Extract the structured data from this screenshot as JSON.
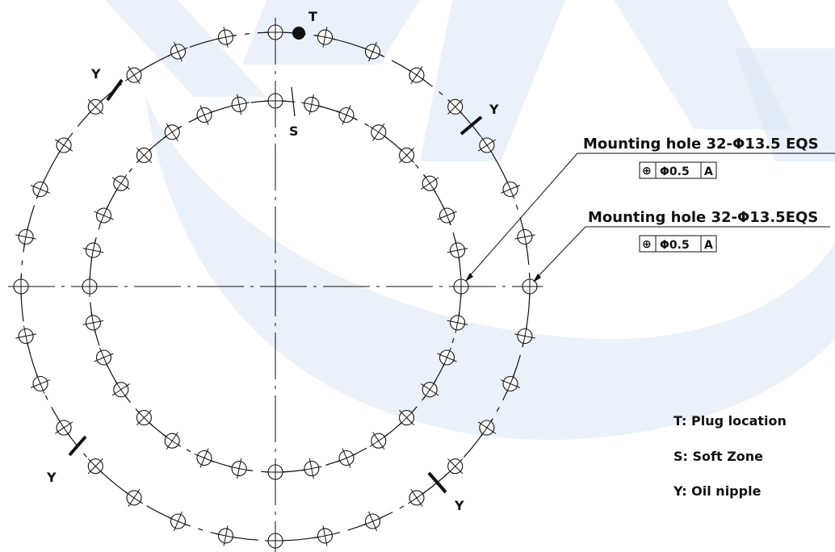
{
  "colors": {
    "ink": "#111111",
    "watermark": "#dde8f5",
    "background": "#ffffff"
  },
  "markers": {
    "plug": "T",
    "soft_zone": "S",
    "oil_nipple": "Y"
  },
  "callouts": {
    "outer": {
      "text": "Mounting hole 32-Φ13.5 EQS",
      "tolerance_symbol": "⊕",
      "tolerance_value": "Φ0.5",
      "datum": "A"
    },
    "inner": {
      "text": "Mounting hole 32-Φ13.5EQS",
      "tolerance_symbol": "⊕",
      "tolerance_value": "Φ0.5",
      "datum": "A"
    }
  },
  "legend": [
    {
      "text": "T: Plug location"
    },
    {
      "text": "S: Soft Zone"
    },
    {
      "text": "Y: Oil nipple"
    }
  ],
  "hole_circles": {
    "outer": {
      "holes": 32
    },
    "inner": {
      "holes": 32
    }
  }
}
